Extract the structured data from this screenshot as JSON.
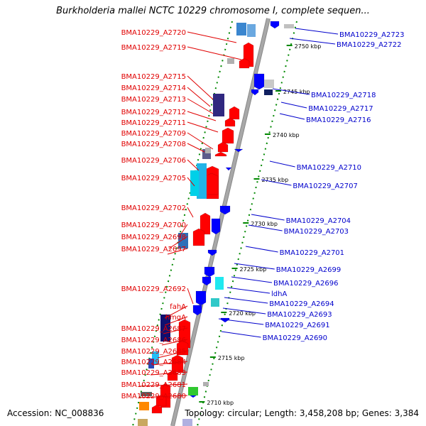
{
  "title": "Burkholderia mallei NCTC 10229 chromosome I, complete sequen...",
  "footer": {
    "accession": "Accession: NC_008836",
    "stats": "Topology: circular; Length: 3,458,208 bp; Genes: 3,384"
  },
  "ticks": [
    "2750 kbp",
    "2745 kbp",
    "2740 kbp",
    "2735 kbp",
    "2730 kbp",
    "2725 kbp",
    "2720 kbp",
    "2715 kbp",
    "2710 kbp"
  ],
  "left_genes": [
    "BMA10229_A2720",
    "BMA10229_A2719",
    "BMA10229_A2715",
    "BMA10229_A2714",
    "BMA10229_A2713",
    "BMA10229_A2712",
    "BMA10229_A2711",
    "BMA10229_A2709",
    "BMA10229_A2708",
    "BMA10229_A2706",
    "BMA10229_A2705",
    "BMA10229_A2702",
    "BMA10229_A2700",
    "BMA10229_A2698",
    "BMA10229_A2697",
    "BMA10229_A2692",
    "fahA",
    "hmgA",
    "BMA10229_A2687",
    "BMA10229_A2686",
    "BMA10229_A2685",
    "BMA10229_A2684",
    "BMA10229_A2683",
    "BMA10229_A2681",
    "BMA10229_A2680"
  ],
  "right_genes": [
    "BMA10229_A2723",
    "BMA10229_A2722",
    "BMA10229_A2718",
    "BMA10229_A2717",
    "BMA10229_A2716",
    "BMA10229_A2710",
    "BMA10229_A2707",
    "BMA10229_A2704",
    "BMA10229_A2703",
    "BMA10229_A2701",
    "BMA10229_A2699",
    "BMA10229_A2696",
    "ldhA",
    "BMA10229_A2694",
    "BMA10229_A2693",
    "BMA10229_A2691",
    "BMA10229_A2690"
  ],
  "colors": {
    "left_label": "#e00000",
    "right_label": "#0000cc",
    "forward_gene": "#ff0000",
    "reverse_gene": "#0000ff",
    "backbone": "#a8a8a8",
    "tick_mark": "#008800"
  }
}
